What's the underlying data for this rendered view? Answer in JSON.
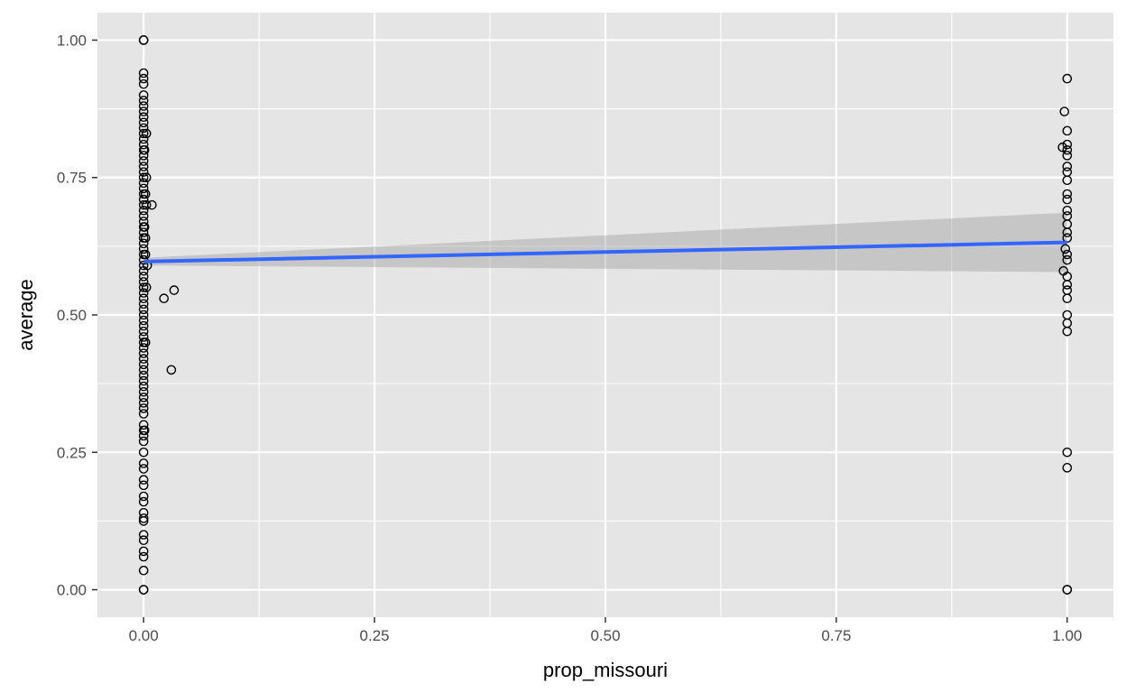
{
  "chart_data": {
    "type": "scatter",
    "title": "",
    "xlabel": "prop_missouri",
    "ylabel": "average",
    "xlim": [
      -0.05,
      1.05
    ],
    "ylim": [
      -0.05,
      1.05
    ],
    "x_ticks": [
      {
        "value": 0,
        "label": "0.00"
      },
      {
        "value": 0.25,
        "label": "0.25"
      },
      {
        "value": 0.5,
        "label": "0.50"
      },
      {
        "value": 0.75,
        "label": "0.75"
      },
      {
        "value": 1,
        "label": "1.00"
      }
    ],
    "y_ticks": [
      {
        "value": 0,
        "label": "0.00"
      },
      {
        "value": 0.25,
        "label": "0.25"
      },
      {
        "value": 0.5,
        "label": "0.50"
      },
      {
        "value": 0.75,
        "label": "0.75"
      },
      {
        "value": 1,
        "label": "1.00"
      }
    ],
    "grid": true,
    "colors": {
      "panel": "#e5e5e5",
      "grid": "#ffffff",
      "points": "#000000",
      "fit_line": "#3366ff",
      "ribbon": "#999999"
    },
    "points": [
      [
        0,
        1.0
      ],
      [
        0,
        1.0
      ],
      [
        0,
        0.94
      ],
      [
        0,
        0.93
      ],
      [
        0,
        0.92
      ],
      [
        0,
        0.9
      ],
      [
        0,
        0.89
      ],
      [
        0,
        0.88
      ],
      [
        0,
        0.87
      ],
      [
        0,
        0.86
      ],
      [
        0,
        0.85
      ],
      [
        0,
        0.84
      ],
      [
        0,
        0.83
      ],
      [
        0,
        0.82
      ],
      [
        0,
        0.81
      ],
      [
        0,
        0.8
      ],
      [
        0,
        0.79
      ],
      [
        0,
        0.78
      ],
      [
        0,
        0.77
      ],
      [
        0,
        0.76
      ],
      [
        0,
        0.75
      ],
      [
        0,
        0.74
      ],
      [
        0,
        0.73
      ],
      [
        0,
        0.72
      ],
      [
        0,
        0.71
      ],
      [
        0,
        0.7
      ],
      [
        0,
        0.69
      ],
      [
        0,
        0.68
      ],
      [
        0,
        0.67
      ],
      [
        0,
        0.66
      ],
      [
        0,
        0.65
      ],
      [
        0,
        0.64
      ],
      [
        0,
        0.63
      ],
      [
        0,
        0.62
      ],
      [
        0,
        0.61
      ],
      [
        0,
        0.6
      ],
      [
        0,
        0.59
      ],
      [
        0,
        0.58
      ],
      [
        0,
        0.57
      ],
      [
        0,
        0.56
      ],
      [
        0,
        0.55
      ],
      [
        0,
        0.54
      ],
      [
        0,
        0.53
      ],
      [
        0,
        0.52
      ],
      [
        0,
        0.51
      ],
      [
        0,
        0.5
      ],
      [
        0,
        0.49
      ],
      [
        0,
        0.48
      ],
      [
        0,
        0.47
      ],
      [
        0,
        0.46
      ],
      [
        0,
        0.45
      ],
      [
        0,
        0.44
      ],
      [
        0,
        0.43
      ],
      [
        0,
        0.42
      ],
      [
        0,
        0.41
      ],
      [
        0,
        0.4
      ],
      [
        0,
        0.39
      ],
      [
        0,
        0.38
      ],
      [
        0,
        0.37
      ],
      [
        0,
        0.36
      ],
      [
        0,
        0.35
      ],
      [
        0,
        0.34
      ],
      [
        0,
        0.33
      ],
      [
        0,
        0.32
      ],
      [
        0,
        0.3
      ],
      [
        0,
        0.29
      ],
      [
        0,
        0.28
      ],
      [
        0,
        0.27
      ],
      [
        0,
        0.25
      ],
      [
        0,
        0.23
      ],
      [
        0,
        0.22
      ],
      [
        0,
        0.2
      ],
      [
        0,
        0.19
      ],
      [
        0,
        0.17
      ],
      [
        0,
        0.16
      ],
      [
        0,
        0.14
      ],
      [
        0,
        0.13
      ],
      [
        0,
        0.125
      ],
      [
        0,
        0.1
      ],
      [
        0,
        0.09
      ],
      [
        0,
        0.07
      ],
      [
        0,
        0.06
      ],
      [
        0,
        0.035
      ],
      [
        0,
        0.0
      ],
      [
        0,
        0.0
      ],
      [
        0.003,
        0.83
      ],
      [
        0.003,
        0.75
      ],
      [
        0.003,
        0.7
      ],
      [
        0.002,
        0.64
      ],
      [
        0.002,
        0.61
      ],
      [
        0.004,
        0.59
      ],
      [
        0.003,
        0.55
      ],
      [
        0.001,
        0.8
      ],
      [
        0.001,
        0.66
      ],
      [
        0.002,
        0.72
      ],
      [
        0.001,
        0.29
      ],
      [
        0.002,
        0.45
      ],
      [
        0.009,
        0.7
      ],
      [
        0.022,
        0.53
      ],
      [
        0.033,
        0.545
      ],
      [
        0.03,
        0.4
      ],
      [
        1,
        0.93
      ],
      [
        0.997,
        0.87
      ],
      [
        1,
        0.835
      ],
      [
        0.995,
        0.805
      ],
      [
        1,
        0.81
      ],
      [
        1,
        0.8
      ],
      [
        1,
        0.79
      ],
      [
        1,
        0.77
      ],
      [
        1,
        0.76
      ],
      [
        1,
        0.745
      ],
      [
        1,
        0.72
      ],
      [
        1,
        0.71
      ],
      [
        1,
        0.69
      ],
      [
        1,
        0.68
      ],
      [
        1,
        0.665
      ],
      [
        1,
        0.65
      ],
      [
        1,
        0.64
      ],
      [
        0.998,
        0.62
      ],
      [
        1,
        0.61
      ],
      [
        1,
        0.6
      ],
      [
        0.996,
        0.58
      ],
      [
        1,
        0.57
      ],
      [
        1,
        0.555
      ],
      [
        1,
        0.545
      ],
      [
        1,
        0.53
      ],
      [
        1,
        0.5
      ],
      [
        1,
        0.485
      ],
      [
        1,
        0.47
      ],
      [
        1,
        0.25
      ],
      [
        1,
        0.222
      ],
      [
        1,
        0.0
      ],
      [
        1,
        0.0
      ]
    ],
    "fit_line": {
      "x": [
        0,
        1
      ],
      "y": [
        0.597,
        0.632
      ]
    },
    "confidence_band": {
      "x": [
        0,
        1
      ],
      "lower": [
        0.59,
        0.578
      ],
      "upper": [
        0.604,
        0.686
      ]
    }
  }
}
